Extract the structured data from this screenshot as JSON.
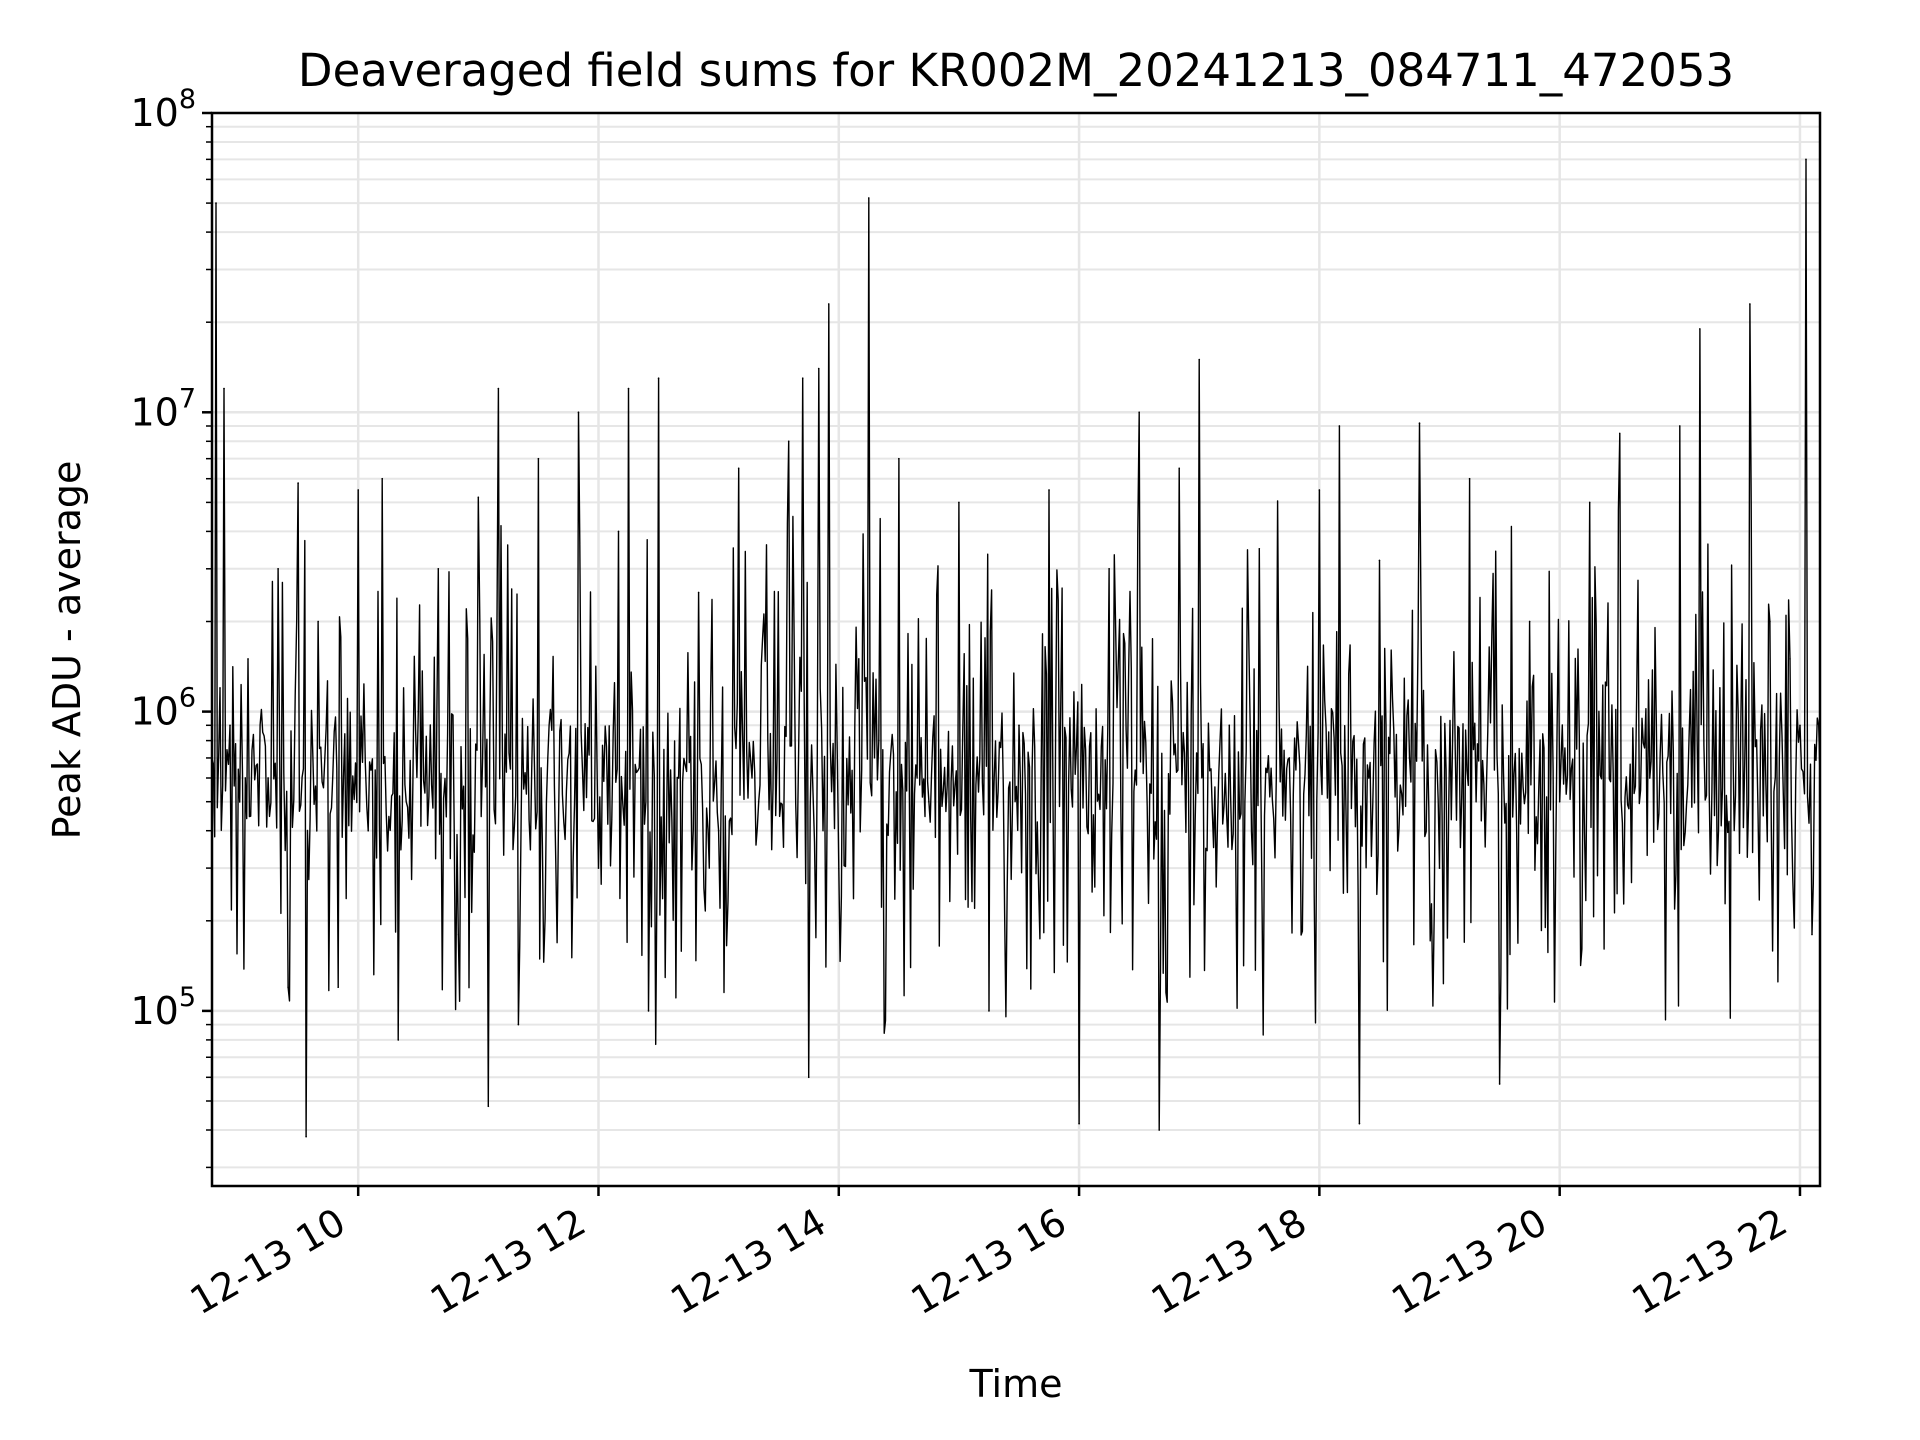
{
  "chart_data": {
    "type": "line",
    "title": "Deaveraged field sums for KR002M_20241213_084711_472053",
    "xlabel": "Time",
    "ylabel": "Peak ADU - average",
    "yscale": "log",
    "ylim": [
      26000,
      100000000
    ],
    "xlim": [
      "2024-12-13T08:47:00",
      "2024-12-13T22:10:00"
    ],
    "grid": true,
    "line_color": "#000000",
    "grid_color": "#e6e6e6",
    "x_ticks": [
      {
        "t": "2024-12-13T10:00:00",
        "label": "12-13 10"
      },
      {
        "t": "2024-12-13T12:00:00",
        "label": "12-13 12"
      },
      {
        "t": "2024-12-13T14:00:00",
        "label": "12-13 14"
      },
      {
        "t": "2024-12-13T16:00:00",
        "label": "12-13 16"
      },
      {
        "t": "2024-12-13T18:00:00",
        "label": "12-13 18"
      },
      {
        "t": "2024-12-13T20:00:00",
        "label": "12-13 20"
      },
      {
        "t": "2024-12-13T22:00:00",
        "label": "12-13 22"
      }
    ],
    "y_ticks": [
      {
        "value": 100000,
        "base": "10",
        "exp": "5"
      },
      {
        "value": 1000000,
        "base": "10",
        "exp": "6"
      },
      {
        "value": 10000000,
        "base": "10",
        "exp": "7"
      },
      {
        "value": 100000000,
        "base": "10",
        "exp": "8"
      }
    ],
    "series": [
      {
        "points": [
          [
            "2024-12-13T08:47",
            700000
          ],
          [
            "2024-12-13T08:49",
            50000000
          ],
          [
            "2024-12-13T08:51",
            1200000
          ],
          [
            "2024-12-13T08:53",
            12000000
          ],
          [
            "2024-12-13T08:56",
            900000
          ],
          [
            "2024-12-13T09:05",
            1500000
          ],
          [
            "2024-12-13T09:15",
            600000
          ],
          [
            "2024-12-13T09:20",
            3000000
          ],
          [
            "2024-12-13T09:25",
            120000
          ],
          [
            "2024-12-13T09:30",
            5800000
          ],
          [
            "2024-12-13T09:34",
            38000
          ],
          [
            "2024-12-13T09:40",
            2000000
          ],
          [
            "2024-12-13T09:50",
            120000
          ],
          [
            "2024-12-13T10:00",
            5500000
          ],
          [
            "2024-12-13T10:05",
            400000
          ],
          [
            "2024-12-13T10:12",
            6000000
          ],
          [
            "2024-12-13T10:20",
            80000
          ],
          [
            "2024-12-13T10:30",
            1000000
          ],
          [
            "2024-12-13T10:40",
            3000000
          ],
          [
            "2024-12-13T10:50",
            180000
          ],
          [
            "2024-12-13T11:00",
            5200000
          ],
          [
            "2024-12-13T11:05",
            48000
          ],
          [
            "2024-12-13T11:10",
            12000000
          ],
          [
            "2024-12-13T11:20",
            90000
          ],
          [
            "2024-12-13T11:30",
            7000000
          ],
          [
            "2024-12-13T11:40",
            400000
          ],
          [
            "2024-12-13T11:50",
            10000000
          ],
          [
            "2024-12-13T12:00",
            300000
          ],
          [
            "2024-12-13T12:10",
            4000000
          ],
          [
            "2024-12-13T12:15",
            12000000
          ],
          [
            "2024-12-13T12:25",
            100000
          ],
          [
            "2024-12-13T12:30",
            13000000
          ],
          [
            "2024-12-13T12:40",
            600000
          ],
          [
            "2024-12-13T12:50",
            2500000
          ],
          [
            "2024-12-13T13:00",
            400000
          ],
          [
            "2024-12-13T13:10",
            6500000
          ],
          [
            "2024-12-13T13:20",
            500000
          ],
          [
            "2024-12-13T13:35",
            8000000
          ],
          [
            "2024-12-13T13:42",
            13000000
          ],
          [
            "2024-12-13T13:45",
            60000
          ],
          [
            "2024-12-13T13:50",
            14000000
          ],
          [
            "2024-12-13T13:55",
            23000000
          ],
          [
            "2024-12-13T14:00",
            300000
          ],
          [
            "2024-12-13T14:10",
            1500000
          ],
          [
            "2024-12-13T14:15",
            52000000
          ],
          [
            "2024-12-13T14:20",
            800000
          ],
          [
            "2024-12-13T14:30",
            7000000
          ],
          [
            "2024-12-13T14:45",
            500000
          ],
          [
            "2024-12-13T15:00",
            5000000
          ],
          [
            "2024-12-13T15:15",
            100000
          ],
          [
            "2024-12-13T15:30",
            900000
          ],
          [
            "2024-12-13T15:45",
            5500000
          ],
          [
            "2024-12-13T16:00",
            42000
          ],
          [
            "2024-12-13T16:15",
            3000000
          ],
          [
            "2024-12-13T16:30",
            10000000
          ],
          [
            "2024-12-13T16:40",
            40000
          ],
          [
            "2024-12-13T16:50",
            6500000
          ],
          [
            "2024-12-13T17:00",
            15000000
          ],
          [
            "2024-12-13T17:15",
            900000
          ],
          [
            "2024-12-13T17:30",
            3500000
          ],
          [
            "2024-12-13T17:45",
            700000
          ],
          [
            "2024-12-13T18:00",
            5500000
          ],
          [
            "2024-12-13T18:10",
            9000000
          ],
          [
            "2024-12-13T18:20",
            42000
          ],
          [
            "2024-12-13T18:30",
            3200000
          ],
          [
            "2024-12-13T18:45",
            700000
          ],
          [
            "2024-12-13T18:50",
            9200000
          ],
          [
            "2024-12-13T19:00",
            300000
          ],
          [
            "2024-12-13T19:15",
            6000000
          ],
          [
            "2024-12-13T19:30",
            57000
          ],
          [
            "2024-12-13T19:45",
            2000000
          ],
          [
            "2024-12-13T20:00",
            500000
          ],
          [
            "2024-12-13T20:15",
            5000000
          ],
          [
            "2024-12-13T20:30",
            8500000
          ],
          [
            "2024-12-13T20:45",
            600000
          ],
          [
            "2024-12-13T21:00",
            9000000
          ],
          [
            "2024-12-13T21:10",
            19000000
          ],
          [
            "2024-12-13T21:20",
            1200000
          ],
          [
            "2024-12-13T21:35",
            23000000
          ],
          [
            "2024-12-13T21:45",
            2000000
          ],
          [
            "2024-12-13T21:55",
            1500000
          ],
          [
            "2024-12-13T22:00",
            900000
          ],
          [
            "2024-12-13T22:03",
            70000000
          ],
          [
            "2024-12-13T22:06",
            180000
          ],
          [
            "2024-12-13T22:10",
            600000
          ]
        ]
      }
    ]
  }
}
